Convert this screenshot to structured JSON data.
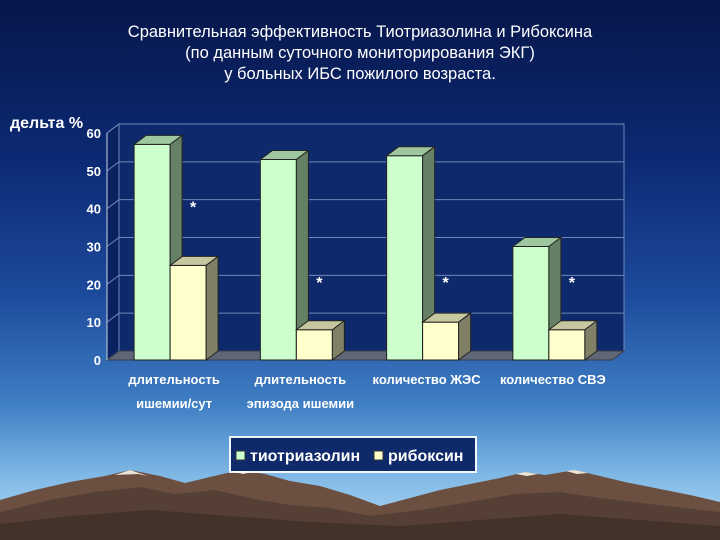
{
  "title_lines": [
    "Сравнительная эффективность Тиотриазолина и Рибоксина",
    "(по данным суточного мониторирования ЭКГ)",
    "у больных ИБС пожилого возраста."
  ],
  "chart_data": {
    "type": "bar",
    "title": "Сравнительная эффективность Тиотриазолина и Рибоксина (по данным суточного мониторирования ЭКГ) у больных ИБС пожилого возраста.",
    "ylabel": "дельта %",
    "xlabel": "",
    "ylim": [
      0,
      60
    ],
    "yticks": [
      0,
      10,
      20,
      30,
      40,
      50,
      60
    ],
    "categories": [
      [
        "длительность",
        "ишемии/сут"
      ],
      [
        "длительность",
        "эпизода ишемии"
      ],
      [
        "количество ЖЭС"
      ],
      [
        "количество СВЭ"
      ]
    ],
    "series": [
      {
        "name": "тиотриазолин",
        "values": [
          57,
          53,
          54,
          30
        ],
        "color": "#ccffcc"
      },
      {
        "name": "рибоксин",
        "values": [
          25,
          8,
          10,
          8
        ],
        "color": "#ffffcc"
      }
    ],
    "annotations": [
      "*",
      "*",
      "*",
      "*"
    ],
    "grid": true,
    "legend_position": "bottom",
    "three_d": true
  }
}
